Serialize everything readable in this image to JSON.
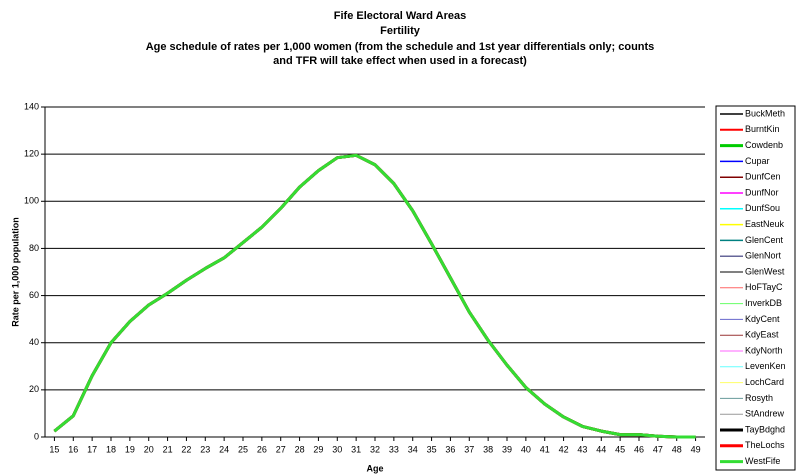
{
  "chart_data": {
    "type": "line",
    "title": "Fife Electoral Ward Areas",
    "subtitle": "Fertility",
    "description": [
      "Age schedule of rates per 1,000 women (from the schedule and 1st year differentials only; counts",
      "and TFR will take effect when used in a forecast)"
    ],
    "x_label": "Age",
    "y_label": "Rate per 1,000 population",
    "x": [
      15,
      16,
      17,
      18,
      19,
      20,
      21,
      22,
      23,
      24,
      25,
      26,
      27,
      28,
      29,
      30,
      31,
      32,
      33,
      34,
      35,
      36,
      37,
      38,
      39,
      40,
      41,
      42,
      43,
      44,
      45,
      46,
      47,
      48,
      49
    ],
    "xlim": [
      14.5,
      49.5
    ],
    "ylim": [
      0,
      140
    ],
    "yticks": [
      0,
      20,
      40,
      60,
      80,
      100,
      120,
      140
    ],
    "grid": true,
    "legend": "right",
    "series": [
      {
        "name": "BuckMeth",
        "color": "#000000",
        "width": 1.5,
        "values": [
          2.5,
          9,
          26,
          40,
          49,
          56,
          61,
          66.5,
          71.5,
          76,
          82.5,
          89,
          97,
          106,
          113,
          118.5,
          119.5,
          115.5,
          107.5,
          96,
          82,
          67.5,
          53,
          41,
          30.5,
          21,
          14,
          8.5,
          4.5,
          2.5,
          1,
          1,
          0.3,
          0,
          0
        ]
      },
      {
        "name": "BurntKin",
        "color": "#ff0000",
        "width": 2,
        "values": [
          2.5,
          9,
          26,
          40,
          49,
          56,
          61,
          66.5,
          71.5,
          76,
          82.5,
          89,
          97,
          106,
          113,
          118.5,
          119.5,
          115.5,
          107.5,
          96,
          82,
          67.5,
          53,
          41,
          30.5,
          21,
          14,
          8.5,
          4.5,
          2.5,
          1,
          1,
          0.3,
          0,
          0
        ]
      },
      {
        "name": "Cowdenb",
        "color": "#00cc00",
        "width": 3,
        "values": [
          2.5,
          9,
          26,
          40,
          49,
          56,
          61,
          66.5,
          71.5,
          76,
          82.5,
          89,
          97,
          106,
          113,
          118.5,
          119.5,
          115.5,
          107.5,
          96,
          82,
          67.5,
          53,
          41,
          30.5,
          21,
          14,
          8.5,
          4.5,
          2.5,
          1,
          1,
          0.3,
          0,
          0
        ]
      },
      {
        "name": "Cupar",
        "color": "#0000ff",
        "width": 1.5,
        "values": [
          2.5,
          9,
          26,
          40,
          49,
          56,
          61,
          66.5,
          71.5,
          76,
          82.5,
          89,
          97,
          106,
          113,
          118.5,
          119.5,
          115.5,
          107.5,
          96,
          82,
          67.5,
          53,
          41,
          30.5,
          21,
          14,
          8.5,
          4.5,
          2.5,
          1,
          1,
          0.3,
          0,
          0
        ]
      },
      {
        "name": "DunfCen",
        "color": "#800000",
        "width": 1.5,
        "values": [
          2.5,
          9,
          26,
          40,
          49,
          56,
          61,
          66.5,
          71.5,
          76,
          82.5,
          89,
          97,
          106,
          113,
          118.5,
          119.5,
          115.5,
          107.5,
          96,
          82,
          67.5,
          53,
          41,
          30.5,
          21,
          14,
          8.5,
          4.5,
          2.5,
          1,
          1,
          0.3,
          0,
          0
        ]
      },
      {
        "name": "DunfNor",
        "color": "#ff00ff",
        "width": 1.5,
        "values": [
          2.5,
          9,
          26,
          40,
          49,
          56,
          61,
          66.5,
          71.5,
          76,
          82.5,
          89,
          97,
          106,
          113,
          118.5,
          119.5,
          115.5,
          107.5,
          96,
          82,
          67.5,
          53,
          41,
          30.5,
          21,
          14,
          8.5,
          4.5,
          2.5,
          1,
          1,
          0.3,
          0,
          0
        ]
      },
      {
        "name": "DunfSou",
        "color": "#00ffff",
        "width": 1.5,
        "values": [
          2.5,
          9,
          26,
          40,
          49,
          56,
          61,
          66.5,
          71.5,
          76,
          82.5,
          89,
          97,
          106,
          113,
          118.5,
          119.5,
          115.5,
          107.5,
          96,
          82,
          67.5,
          53,
          41,
          30.5,
          21,
          14,
          8.5,
          4.5,
          2.5,
          1,
          1,
          0.3,
          0,
          0
        ]
      },
      {
        "name": "EastNeuk",
        "color": "#ffff00",
        "width": 1.5,
        "values": [
          2.5,
          9,
          26,
          40,
          49,
          56,
          61,
          66.5,
          71.5,
          76,
          82.5,
          89,
          97,
          106,
          113,
          118.5,
          119.5,
          115.5,
          107.5,
          96,
          82,
          67.5,
          53,
          41,
          30.5,
          21,
          14,
          8.5,
          4.5,
          2.5,
          1,
          1,
          0.3,
          0,
          0
        ]
      },
      {
        "name": "GlenCent",
        "color": "#008080",
        "width": 1.5,
        "values": [
          2.5,
          9,
          26,
          40,
          49,
          56,
          61,
          66.5,
          71.5,
          76,
          82.5,
          89,
          97,
          106,
          113,
          118.5,
          119.5,
          115.5,
          107.5,
          96,
          82,
          67.5,
          53,
          41,
          30.5,
          21,
          14,
          8.5,
          4.5,
          2.5,
          1,
          1,
          0.3,
          0,
          0
        ]
      },
      {
        "name": "GlenNort",
        "color": "#666699",
        "width": 1.5,
        "values": [
          2.5,
          9,
          26,
          40,
          49,
          56,
          61,
          66.5,
          71.5,
          76,
          82.5,
          89,
          97,
          106,
          113,
          118.5,
          119.5,
          115.5,
          107.5,
          96,
          82,
          67.5,
          53,
          41,
          30.5,
          21,
          14,
          8.5,
          4.5,
          2.5,
          1,
          1,
          0.3,
          0,
          0
        ]
      },
      {
        "name": "GlenWest",
        "color": "#000000",
        "width": 1,
        "values": [
          2.5,
          9,
          26,
          40,
          49,
          56,
          61,
          66.5,
          71.5,
          76,
          82.5,
          89,
          97,
          106,
          113,
          118.5,
          119.5,
          115.5,
          107.5,
          96,
          82,
          67.5,
          53,
          41,
          30.5,
          21,
          14,
          8.5,
          4.5,
          2.5,
          1,
          1,
          0.3,
          0,
          0
        ]
      },
      {
        "name": "HoFTayC",
        "color": "#ff6666",
        "width": 1,
        "values": [
          2.5,
          9,
          26,
          40,
          49,
          56,
          61,
          66.5,
          71.5,
          76,
          82.5,
          89,
          97,
          106,
          113,
          118.5,
          119.5,
          115.5,
          107.5,
          96,
          82,
          67.5,
          53,
          41,
          30.5,
          21,
          14,
          8.5,
          4.5,
          2.5,
          1,
          1,
          0.3,
          0,
          0
        ]
      },
      {
        "name": "InverkDB",
        "color": "#66ff66",
        "width": 1,
        "values": [
          2.5,
          9,
          26,
          40,
          49,
          56,
          61,
          66.5,
          71.5,
          76,
          82.5,
          89,
          97,
          106,
          113,
          118.5,
          119.5,
          115.5,
          107.5,
          96,
          82,
          67.5,
          53,
          41,
          30.5,
          21,
          14,
          8.5,
          4.5,
          2.5,
          1,
          1,
          0.3,
          0,
          0
        ]
      },
      {
        "name": "KdyCent",
        "color": "#6666cc",
        "width": 1,
        "values": [
          2.5,
          9,
          26,
          40,
          49,
          56,
          61,
          66.5,
          71.5,
          76,
          82.5,
          89,
          97,
          106,
          113,
          118.5,
          119.5,
          115.5,
          107.5,
          96,
          82,
          67.5,
          53,
          41,
          30.5,
          21,
          14,
          8.5,
          4.5,
          2.5,
          1,
          1,
          0.3,
          0,
          0
        ]
      },
      {
        "name": "KdyEast",
        "color": "#993333",
        "width": 1,
        "values": [
          2.5,
          9,
          26,
          40,
          49,
          56,
          61,
          66.5,
          71.5,
          76,
          82.5,
          89,
          97,
          106,
          113,
          118.5,
          119.5,
          115.5,
          107.5,
          96,
          82,
          67.5,
          53,
          41,
          30.5,
          21,
          14,
          8.5,
          4.5,
          2.5,
          1,
          1,
          0.3,
          0,
          0
        ]
      },
      {
        "name": "KdyNorth",
        "color": "#ff66ff",
        "width": 1,
        "values": [
          2.5,
          9,
          26,
          40,
          49,
          56,
          61,
          66.5,
          71.5,
          76,
          82.5,
          89,
          97,
          106,
          113,
          118.5,
          119.5,
          115.5,
          107.5,
          96,
          82,
          67.5,
          53,
          41,
          30.5,
          21,
          14,
          8.5,
          4.5,
          2.5,
          1,
          1,
          0.3,
          0,
          0
        ]
      },
      {
        "name": "LevenKen",
        "color": "#66ffff",
        "width": 1,
        "values": [
          2.5,
          9,
          26,
          40,
          49,
          56,
          61,
          66.5,
          71.5,
          76,
          82.5,
          89,
          97,
          106,
          113,
          118.5,
          119.5,
          115.5,
          107.5,
          96,
          82,
          67.5,
          53,
          41,
          30.5,
          21,
          14,
          8.5,
          4.5,
          2.5,
          1,
          1,
          0.3,
          0,
          0
        ]
      },
      {
        "name": "LochCard",
        "color": "#ffff66",
        "width": 1,
        "values": [
          2.5,
          9,
          26,
          40,
          49,
          56,
          61,
          66.5,
          71.5,
          76,
          82.5,
          89,
          97,
          106,
          113,
          118.5,
          119.5,
          115.5,
          107.5,
          96,
          82,
          67.5,
          53,
          41,
          30.5,
          21,
          14,
          8.5,
          4.5,
          2.5,
          1,
          1,
          0.3,
          0,
          0
        ]
      },
      {
        "name": "Rosyth",
        "color": "#669999",
        "width": 1,
        "values": [
          2.5,
          9,
          26,
          40,
          49,
          56,
          61,
          66.5,
          71.5,
          76,
          82.5,
          89,
          97,
          106,
          113,
          118.5,
          119.5,
          115.5,
          107.5,
          96,
          82,
          67.5,
          53,
          41,
          30.5,
          21,
          14,
          8.5,
          4.5,
          2.5,
          1,
          1,
          0.3,
          0,
          0
        ]
      },
      {
        "name": "StAndrew",
        "color": "#999999",
        "width": 1,
        "values": [
          2.5,
          9,
          26,
          40,
          49,
          56,
          61,
          66.5,
          71.5,
          76,
          82.5,
          89,
          97,
          106,
          113,
          118.5,
          119.5,
          115.5,
          107.5,
          96,
          82,
          67.5,
          53,
          41,
          30.5,
          21,
          14,
          8.5,
          4.5,
          2.5,
          1,
          1,
          0.3,
          0,
          0
        ]
      },
      {
        "name": "TayBdghd",
        "color": "#000000",
        "width": 3,
        "values": [
          2.5,
          9,
          26,
          40,
          49,
          56,
          61,
          66.5,
          71.5,
          76,
          82.5,
          89,
          97,
          106,
          113,
          118.5,
          119.5,
          115.5,
          107.5,
          96,
          82,
          67.5,
          53,
          41,
          30.5,
          21,
          14,
          8.5,
          4.5,
          2.5,
          1,
          1,
          0.3,
          0,
          0
        ]
      },
      {
        "name": "TheLochs",
        "color": "#ff0000",
        "width": 3,
        "values": [
          2.5,
          9,
          26,
          40,
          49,
          56,
          61,
          66.5,
          71.5,
          76,
          82.5,
          89,
          97,
          106,
          113,
          118.5,
          119.5,
          115.5,
          107.5,
          96,
          82,
          67.5,
          53,
          41,
          30.5,
          21,
          14,
          8.5,
          4.5,
          2.5,
          1,
          1,
          0.3,
          0,
          0
        ]
      },
      {
        "name": "WestFife",
        "color": "#33dd33",
        "width": 3,
        "values": [
          2.5,
          9,
          26,
          40,
          49,
          56,
          61,
          66.5,
          71.5,
          76,
          82.5,
          89,
          97,
          106,
          113,
          118.5,
          119.5,
          115.5,
          107.5,
          96,
          82,
          67.5,
          53,
          41,
          30.5,
          21,
          14,
          8.5,
          4.5,
          2.5,
          1,
          1,
          0.3,
          0,
          0
        ]
      }
    ]
  }
}
